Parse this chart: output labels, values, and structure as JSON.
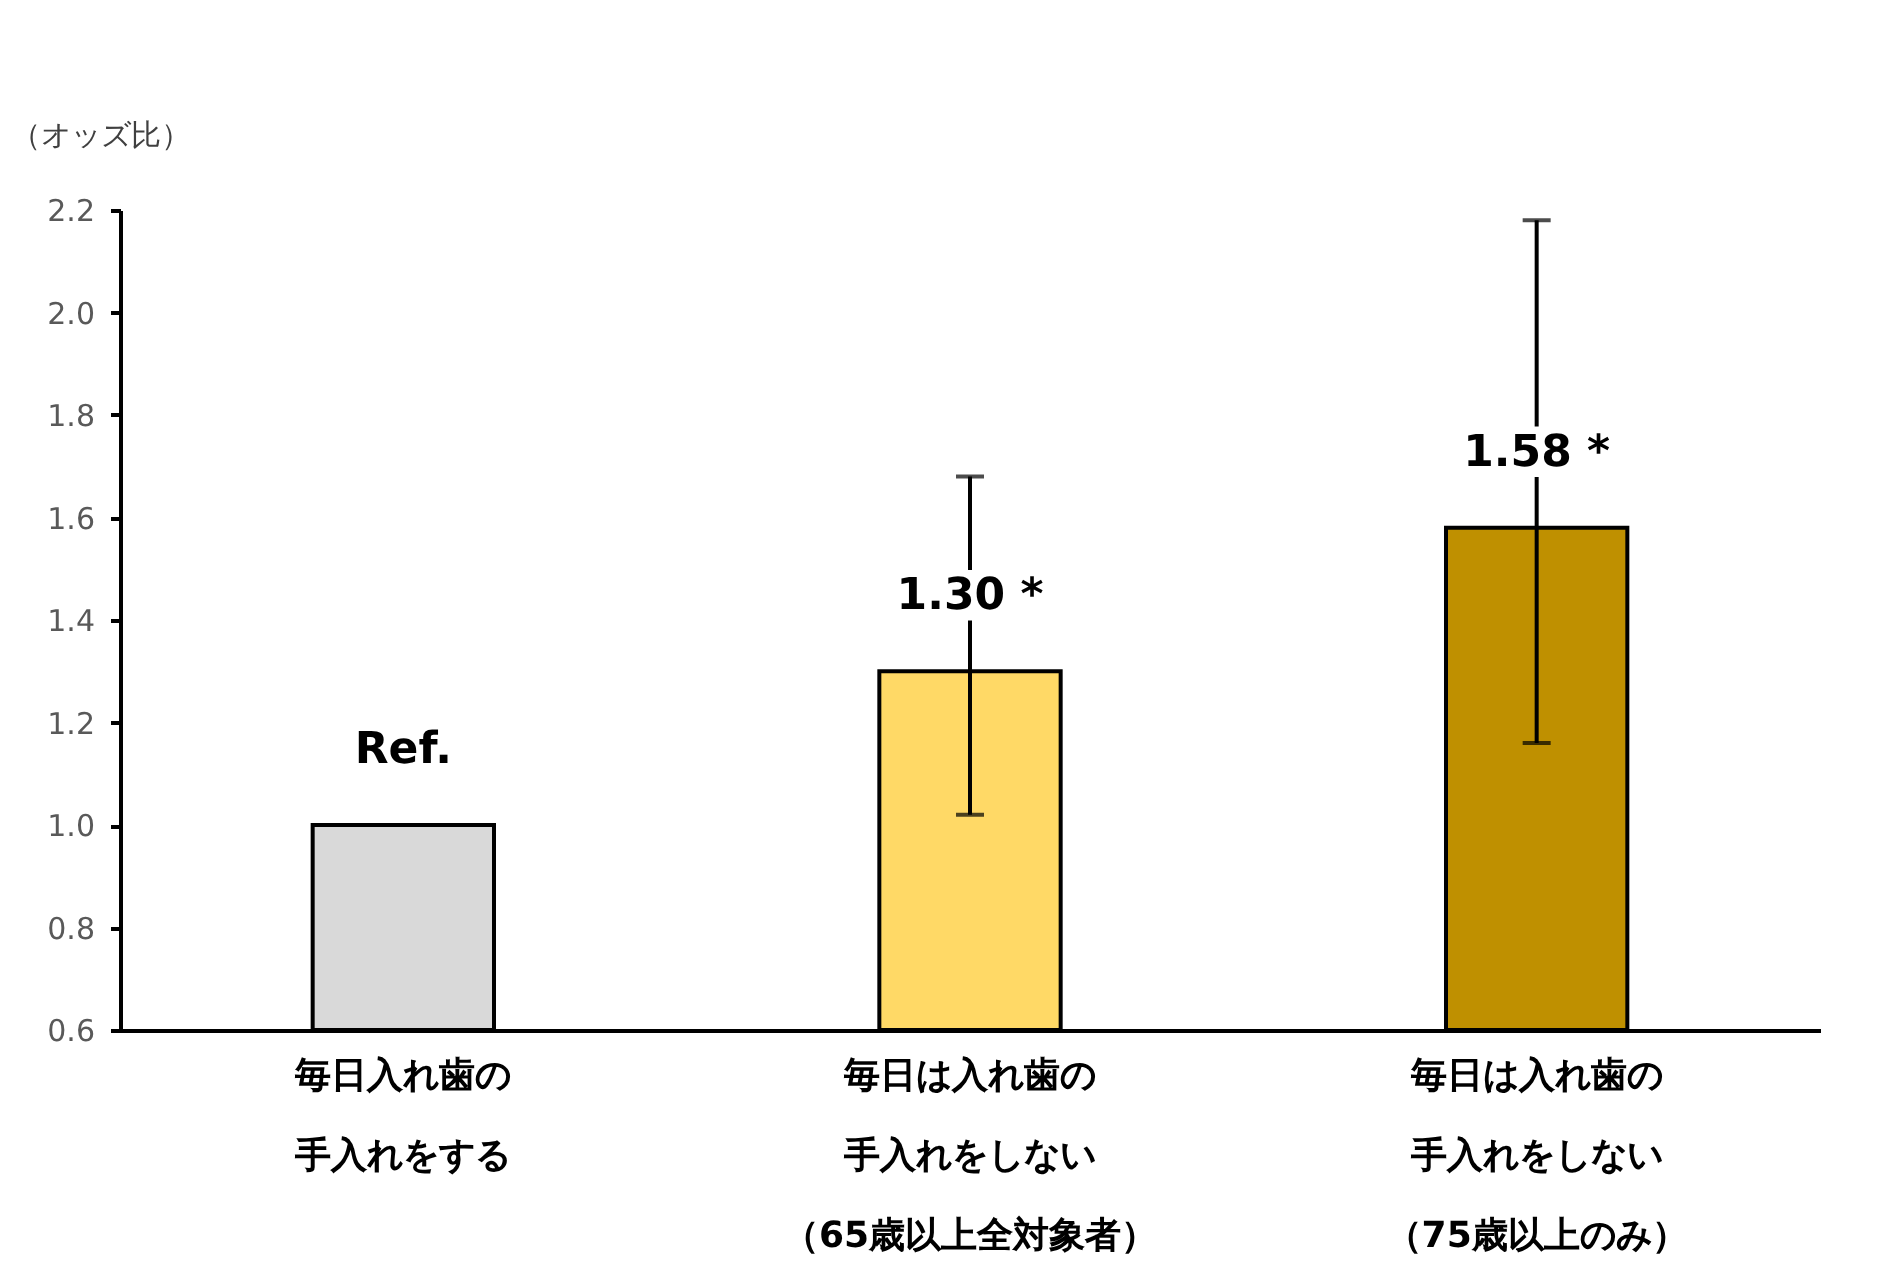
{
  "chart_data": {
    "type": "bar",
    "ylabel": "（オッズ比）",
    "categories": [
      "毎日入れ歯の手入れをする",
      "毎日は入れ歯の手入れをしない（65歳以上全対象者）",
      "毎日は入れ歯の手入れをしない（75歳以上のみ）"
    ],
    "values": [
      1.0,
      1.3,
      1.58
    ],
    "colors": [
      "#d9d9d9",
      "#ffd966",
      "#bf9000"
    ],
    "errors": [
      null,
      [
        1.02,
        1.68
      ],
      [
        1.16,
        2.18
      ]
    ],
    "value_labels": [
      "Ref.",
      "1.30 *",
      "1.58 *"
    ],
    "ylim": [
      0.6,
      2.2
    ],
    "yticks": [
      0.6,
      0.8,
      {
        "value": 1,
        "label": "1.0"
      },
      1.2,
      1.4,
      1.6,
      1.8,
      {
        "value": 2,
        "label": "2.0"
      },
      2.2
    ],
    "grid": false
  }
}
